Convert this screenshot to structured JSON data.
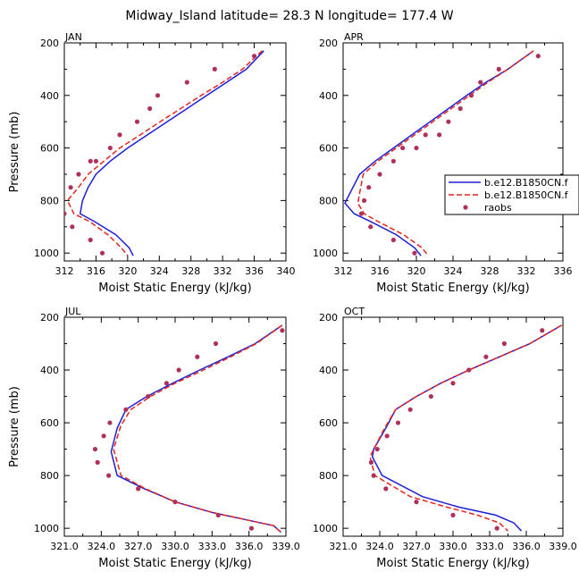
{
  "title": "Midway_Island   latitude= 28.3 N longitude= 177.4 W",
  "colors": {
    "model1": "#1f1fd6",
    "model2": "#e8251e",
    "raobs": "#b0305a"
  },
  "legend": {
    "entries": [
      {
        "label": "b.e12.B1850CN.f",
        "style": "solid",
        "color": "#1f1fd6"
      },
      {
        "label": "b.e12.B1850CN.f",
        "style": "dashed",
        "color": "#e8251e"
      },
      {
        "label": "raobs",
        "style": "marker",
        "color": "#b0305a"
      }
    ]
  },
  "chart_data": [
    {
      "type": "line",
      "panel": "JAN",
      "xlabel": "Moist Static Energy (kJ/kg)",
      "ylabel": "Pressure (mb)",
      "xlim": [
        312,
        340
      ],
      "ylim": [
        1030,
        200
      ],
      "xticks": [
        312,
        316,
        320,
        324,
        328,
        332,
        336,
        340
      ],
      "xtick_labels": [
        "312",
        "316",
        "320",
        "324",
        "328",
        "332",
        "336",
        "340"
      ],
      "yticks": [
        200,
        400,
        600,
        800,
        1000
      ],
      "yaxis_inverted": true,
      "series": [
        {
          "name": "b.e12.B1850CN.f",
          "style": "solid",
          "color": "#1f1fd6",
          "x": [
            337.2,
            335.0,
            332.5,
            330.0,
            327.5,
            325.0,
            322.5,
            320.0,
            317.8,
            316.0,
            315.0,
            314.3,
            314.0,
            315.8,
            318.5,
            320.2,
            320.7
          ],
          "y": [
            230,
            300,
            350,
            400,
            450,
            500,
            550,
            600,
            650,
            700,
            750,
            800,
            850,
            880,
            930,
            980,
            1010
          ]
        },
        {
          "name": "b.e12.B1850CN.f",
          "style": "dashed",
          "color": "#e8251e",
          "x": [
            337.0,
            334.5,
            332.0,
            329.3,
            326.7,
            324.1,
            321.6,
            319.0,
            317.0,
            315.0,
            313.8,
            312.4,
            313.2,
            315.2,
            317.5,
            319.2,
            320.0
          ],
          "y": [
            230,
            300,
            350,
            400,
            450,
            500,
            550,
            600,
            650,
            700,
            750,
            800,
            850,
            880,
            930,
            980,
            1010
          ]
        }
      ],
      "raobs": {
        "x": [
          336.0,
          331.0,
          327.5,
          323.8,
          322.8,
          321.2,
          319.0,
          317.8,
          316.0,
          315.3,
          313.8,
          312.8,
          312.0,
          313.0,
          315.3,
          316.8
        ],
        "y": [
          250,
          300,
          350,
          400,
          450,
          500,
          550,
          600,
          650,
          650,
          700,
          750,
          850,
          900,
          950,
          1000
        ]
      }
    },
    {
      "type": "line",
      "panel": "APR",
      "xlabel": "Moist Static Energy (kJ/kg)",
      "ylabel": "Pressure (mb)",
      "xlim": [
        312,
        336
      ],
      "ylim": [
        1030,
        200
      ],
      "xticks": [
        312,
        316,
        320,
        324,
        328,
        332,
        336
      ],
      "xtick_labels": [
        "312",
        "316",
        "320",
        "324",
        "328",
        "332",
        "336"
      ],
      "yticks": [
        200,
        400,
        600,
        800,
        1000
      ],
      "yaxis_inverted": true,
      "series": [
        {
          "name": "b.e12.B1850CN.f",
          "style": "solid",
          "color": "#1f1fd6",
          "x": [
            332.8,
            330.0,
            327.6,
            325.5,
            323.5,
            321.5,
            319.5,
            317.5,
            315.5,
            313.8,
            312.2,
            313.2,
            315.0,
            317.8,
            319.8,
            320.5
          ],
          "y": [
            230,
            300,
            350,
            400,
            450,
            500,
            550,
            600,
            650,
            700,
            810,
            850,
            880,
            930,
            980,
            1010
          ]
        },
        {
          "name": "b.e12.B1850CN.f",
          "style": "dashed",
          "color": "#e8251e",
          "x": [
            332.8,
            330.0,
            327.8,
            325.8,
            323.8,
            321.8,
            319.8,
            317.8,
            315.8,
            314.2,
            313.6,
            314.3,
            315.8,
            318.6,
            320.6,
            321.3
          ],
          "y": [
            230,
            300,
            350,
            400,
            450,
            500,
            550,
            600,
            650,
            700,
            810,
            850,
            880,
            930,
            980,
            1010
          ]
        }
      ],
      "raobs": {
        "x": [
          333.3,
          329.0,
          327.0,
          326.0,
          324.8,
          323.5,
          322.5,
          321.0,
          320.0,
          318.5,
          317.5,
          316.0,
          314.8,
          314.3,
          314.0,
          315.0,
          317.5,
          319.8
        ],
        "y": [
          250,
          300,
          350,
          400,
          450,
          500,
          550,
          550,
          600,
          600,
          650,
          700,
          750,
          800,
          850,
          900,
          950,
          1000
        ]
      }
    },
    {
      "type": "line",
      "panel": "JUL",
      "xlabel": "Moist Static Energy (kJ/kg)",
      "ylabel": "Pressure (mb)",
      "xlim": [
        321,
        339
      ],
      "ylim": [
        1030,
        200
      ],
      "xticks": [
        321,
        324,
        327,
        330,
        333,
        336,
        339
      ],
      "xtick_labels": [
        "321.0",
        "324.0",
        "327.0",
        "330.0",
        "333.0",
        "336.0",
        "339.0"
      ],
      "yticks": [
        200,
        400,
        600,
        800,
        1000
      ],
      "yaxis_inverted": true,
      "series": [
        {
          "name": "b.e12.B1850CN.f",
          "style": "solid",
          "color": "#1f1fd6",
          "x": [
            338.7,
            336.5,
            334.3,
            332.0,
            329.8,
            327.7,
            326.0,
            325.3,
            324.8,
            325.3,
            327.5,
            330.0,
            333.0,
            336.0,
            338.0,
            338.6
          ],
          "y": [
            230,
            300,
            350,
            400,
            450,
            500,
            550,
            620,
            710,
            800,
            850,
            900,
            940,
            970,
            990,
            1015
          ]
        },
        {
          "name": "b.e12.B1850CN.f",
          "style": "dashed",
          "color": "#e8251e",
          "x": [
            338.7,
            336.6,
            334.5,
            332.3,
            330.0,
            328.0,
            326.4,
            325.6,
            325.0,
            325.6,
            327.6,
            330.0,
            333.0,
            336.0,
            338.0,
            338.6
          ],
          "y": [
            230,
            300,
            350,
            400,
            450,
            500,
            550,
            610,
            700,
            800,
            850,
            900,
            940,
            970,
            990,
            1015
          ]
        }
      ],
      "raobs": {
        "x": [
          338.7,
          333.3,
          331.8,
          330.3,
          329.3,
          327.8,
          326.0,
          324.7,
          324.2,
          323.5,
          323.7,
          324.6,
          327.0,
          330.0,
          333.5,
          336.2
        ],
        "y": [
          250,
          300,
          350,
          400,
          450,
          500,
          550,
          600,
          650,
          700,
          750,
          800,
          850,
          900,
          950,
          1000
        ]
      }
    },
    {
      "type": "line",
      "panel": "OCT",
      "xlabel": "Moist Static Energy (kJ/kg)",
      "ylabel": "Pressure (mb)",
      "xlim": [
        321,
        339
      ],
      "ylim": [
        1030,
        200
      ],
      "xticks": [
        321,
        324,
        327,
        330,
        333,
        336,
        339
      ],
      "xtick_labels": [
        "321.0",
        "324.0",
        "327.0",
        "330.0",
        "333.0",
        "336.0",
        "339.0"
      ],
      "yticks": [
        200,
        400,
        600,
        800,
        1000
      ],
      "yaxis_inverted": true,
      "series": [
        {
          "name": "b.e12.B1850CN.f",
          "style": "solid",
          "color": "#1f1fd6",
          "x": [
            338.9,
            336.3,
            333.8,
            331.3,
            329.0,
            327.0,
            325.3,
            324.5,
            323.5,
            323.4,
            324.2,
            327.5,
            330.5,
            333.5,
            335.0,
            335.6
          ],
          "y": [
            230,
            300,
            350,
            400,
            450,
            500,
            550,
            620,
            700,
            730,
            800,
            880,
            920,
            950,
            980,
            1010
          ]
        },
        {
          "name": "b.e12.B1850CN.f",
          "style": "dashed",
          "color": "#e8251e",
          "x": [
            338.9,
            336.3,
            333.8,
            331.3,
            329.0,
            327.0,
            325.3,
            324.4,
            323.5,
            323.2,
            323.6,
            326.5,
            329.5,
            332.0,
            333.8,
            334.5
          ],
          "y": [
            230,
            300,
            350,
            400,
            450,
            500,
            550,
            620,
            700,
            730,
            800,
            880,
            920,
            950,
            980,
            1010
          ]
        }
      ],
      "raobs": {
        "x": [
          337.3,
          334.2,
          332.7,
          331.3,
          330.0,
          328.2,
          326.5,
          325.5,
          324.6,
          323.8,
          323.3,
          323.5,
          324.5,
          327.0,
          330.0,
          333.6
        ],
        "y": [
          250,
          300,
          350,
          400,
          450,
          500,
          550,
          600,
          650,
          700,
          750,
          800,
          850,
          900,
          950,
          1000
        ]
      }
    }
  ]
}
